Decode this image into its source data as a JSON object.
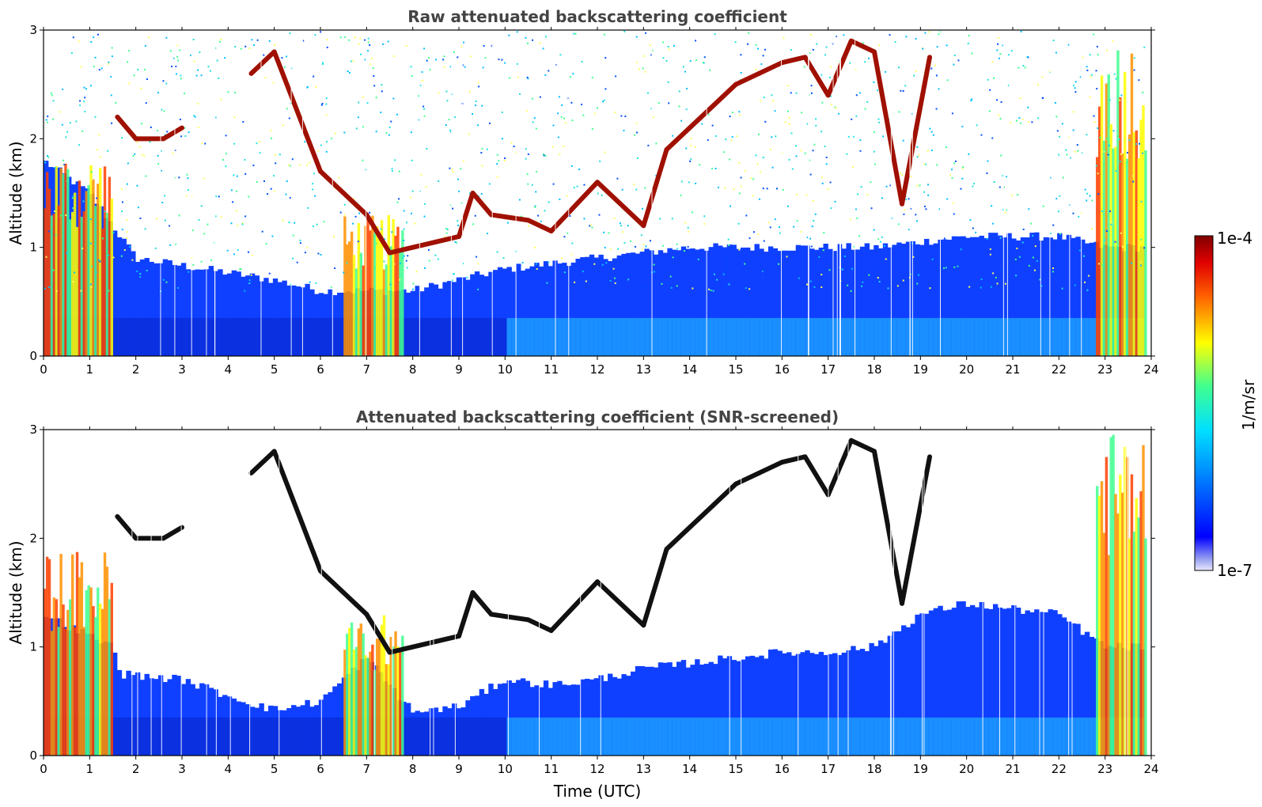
{
  "chart_data": [
    {
      "type": "heatmap",
      "title": "Raw attenuated backscattering coefficient",
      "ylabel": "Altitude (km)",
      "xlabel": "",
      "xlim": [
        0,
        24
      ],
      "ylim": [
        0,
        3
      ],
      "x_ticks": [
        "0",
        "1",
        "2",
        "3",
        "4",
        "5",
        "6",
        "7",
        "8",
        "9",
        "10",
        "11",
        "12",
        "13",
        "14",
        "15",
        "16",
        "17",
        "18",
        "19",
        "20",
        "21",
        "22",
        "23",
        "24"
      ],
      "y_ticks": [
        "0",
        "1",
        "2",
        "3"
      ],
      "colormap": "jet",
      "cloud_layers": [
        [
          1.6,
          2.2
        ],
        [
          2.0,
          2.0
        ],
        [
          2.6,
          2.0
        ],
        [
          3.0,
          2.1
        ],
        [
          4.5,
          2.6
        ],
        [
          5.0,
          2.8
        ],
        [
          6.0,
          1.7
        ],
        [
          6.5,
          1.5
        ],
        [
          7.0,
          1.3
        ],
        [
          7.5,
          0.95
        ],
        [
          8.0,
          1.0
        ],
        [
          8.5,
          1.05
        ],
        [
          9.0,
          1.1
        ],
        [
          9.3,
          1.5
        ],
        [
          9.7,
          1.3
        ],
        [
          10.5,
          1.25
        ],
        [
          11.0,
          1.15
        ],
        [
          12.0,
          1.6
        ],
        [
          13.0,
          1.2
        ],
        [
          13.5,
          1.9
        ],
        [
          14.0,
          2.1
        ],
        [
          14.5,
          2.3
        ],
        [
          15.0,
          2.5
        ],
        [
          15.5,
          2.6
        ],
        [
          16.0,
          2.7
        ],
        [
          16.5,
          2.75
        ],
        [
          17.0,
          2.4
        ],
        [
          17.5,
          2.9
        ],
        [
          18.0,
          2.8
        ],
        [
          18.6,
          1.4
        ],
        [
          19.2,
          2.75
        ]
      ],
      "aerosol_top_km": [
        [
          0,
          1.8
        ],
        [
          1,
          1.5
        ],
        [
          2,
          0.9
        ],
        [
          5,
          0.7
        ],
        [
          6,
          0.6
        ],
        [
          8,
          0.6
        ],
        [
          10,
          0.8
        ],
        [
          12,
          0.9
        ],
        [
          14,
          1.0
        ],
        [
          16,
          1.0
        ],
        [
          18,
          1.0
        ],
        [
          20,
          1.1
        ],
        [
          22,
          1.1
        ],
        [
          23,
          1.0
        ],
        [
          24,
          1.0
        ]
      ]
    },
    {
      "type": "heatmap",
      "title": "Attenuated backscattering coefficient (SNR-screened)",
      "ylabel": "Altitude (km)",
      "xlabel": "Time (UTC)",
      "xlim": [
        0,
        24
      ],
      "ylim": [
        0,
        3
      ],
      "x_ticks": [
        "0",
        "1",
        "2",
        "3",
        "4",
        "5",
        "6",
        "7",
        "8",
        "9",
        "10",
        "11",
        "12",
        "13",
        "14",
        "15",
        "16",
        "17",
        "18",
        "19",
        "20",
        "21",
        "22",
        "23",
        "24"
      ],
      "y_ticks": [
        "0",
        "1",
        "2",
        "3"
      ],
      "colormap": "jet",
      "screened_aerosol_top_km": [
        [
          0,
          1.3
        ],
        [
          1.5,
          1.0
        ],
        [
          1.7,
          0.75
        ],
        [
          3,
          0.7
        ],
        [
          4,
          0.55
        ],
        [
          5,
          0.42
        ],
        [
          6,
          0.5
        ],
        [
          7,
          0.9
        ],
        [
          8,
          0.4
        ],
        [
          9,
          0.45
        ],
        [
          10,
          0.7
        ],
        [
          11,
          0.65
        ],
        [
          12,
          0.7
        ],
        [
          13,
          0.8
        ],
        [
          14,
          0.85
        ],
        [
          15,
          0.9
        ],
        [
          16,
          0.95
        ],
        [
          17,
          0.95
        ],
        [
          18,
          1.0
        ],
        [
          19,
          1.3
        ],
        [
          20,
          1.4
        ],
        [
          21,
          1.35
        ],
        [
          22,
          1.3
        ],
        [
          23,
          1.0
        ],
        [
          24,
          1.0
        ]
      ]
    }
  ],
  "colorbar": {
    "label": "1/m/sr",
    "max_label": "1e-4",
    "min_label": "1e-7",
    "scale": "log",
    "range": [
      1e-07,
      0.0001
    ]
  }
}
